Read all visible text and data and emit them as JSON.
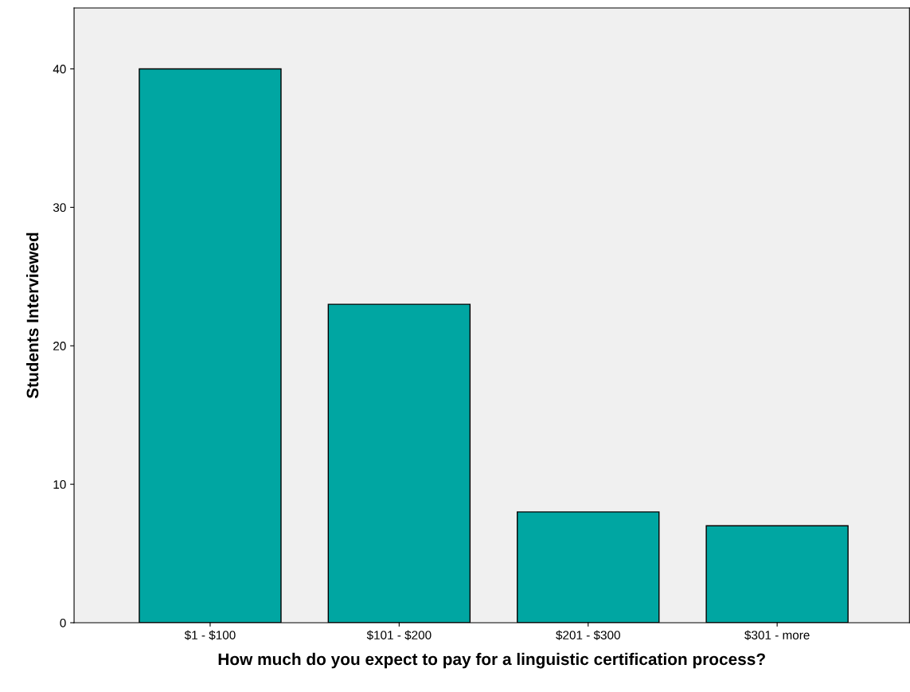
{
  "chart_data": {
    "type": "bar",
    "xlabel": "How much do you expect to pay for a linguistic certification process?",
    "ylabel": "Students Interviewed",
    "categories": [
      "$1 - $100",
      "$101 - $200",
      "$201 - $300",
      "$301 - more"
    ],
    "values": [
      40,
      23,
      8,
      7
    ],
    "color": "#00a6a2",
    "ylim": [
      0,
      44.4
    ],
    "yticks": [
      0,
      10,
      20,
      30,
      40
    ],
    "grid": false,
    "legend": false
  }
}
